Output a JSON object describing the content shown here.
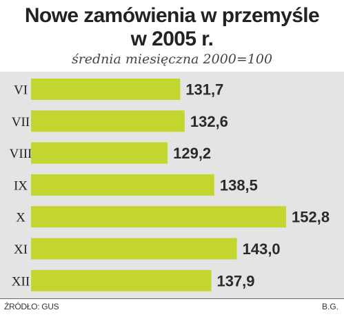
{
  "chart_data": {
    "type": "bar",
    "orientation": "horizontal",
    "title": "Nowe zamówienia w przemyśle",
    "title_line2": "w 2005 r.",
    "subtitle": "średnia miesięczna 2000=100",
    "categories": [
      "VI",
      "VII",
      "VIII",
      "IX",
      "X",
      "XI",
      "XII"
    ],
    "values": [
      131.7,
      132.6,
      129.2,
      138.5,
      152.8,
      143.0,
      137.9
    ],
    "value_labels": [
      "131,7",
      "132,6",
      "129,2",
      "138,5",
      "152,8",
      "143,0",
      "137,9"
    ],
    "highlight_index": 4,
    "xlim": [
      102,
      152.8
    ],
    "grid": false,
    "legend": "none",
    "colors": {
      "bar": "#c3d62f",
      "highlight_text": "#b8264f",
      "background": "#e4e4e4",
      "label_text": "#2a2a2a"
    }
  },
  "footer": {
    "source": "ŹRÓDŁO: GUS",
    "credit": "B.G."
  }
}
